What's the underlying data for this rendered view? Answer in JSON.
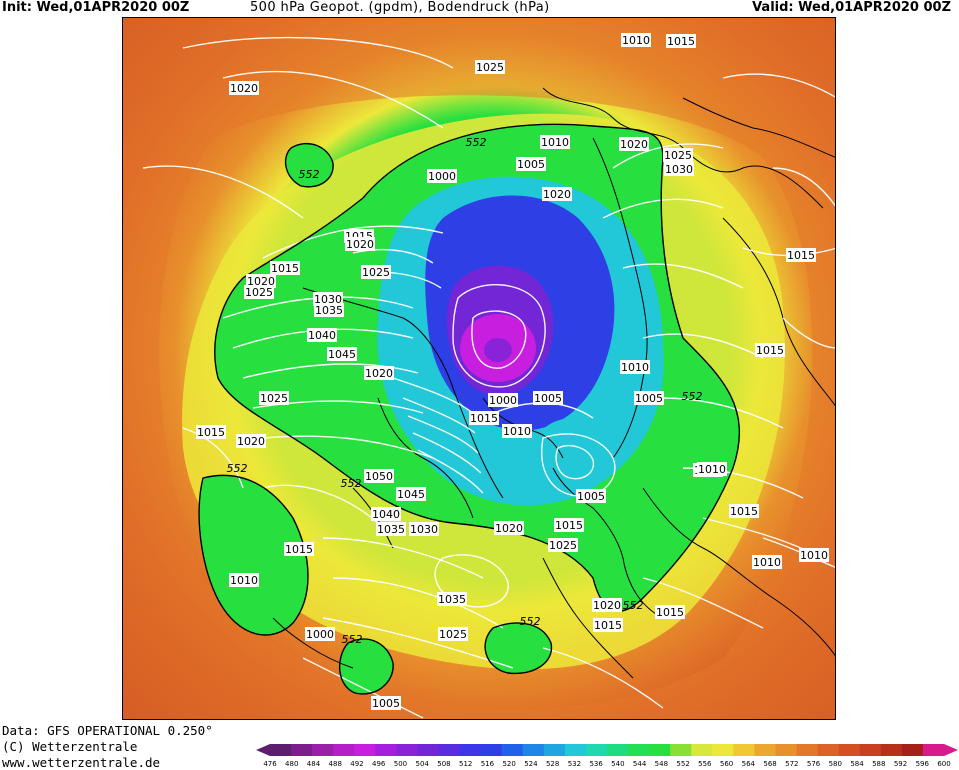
{
  "header": {
    "init": "Init: Wed,01APR2020 00Z",
    "title": "500 hPa Geopot. (gpdm), Bodendruck (hPa)",
    "valid": "Valid: Wed,01APR2020 00Z"
  },
  "footer": {
    "data_source": "Data: GFS OPERATIONAL 0.250°",
    "copyright": "(C) Wetterzentrale",
    "url": "www.wetterzentrale.de"
  },
  "colors": {
    "outer": "#c8401f",
    "warm": "#e4782a",
    "yellow": "#ece83a",
    "green": "#27e03f",
    "cyan": "#22c8d8",
    "blue": "#2f3fe6",
    "violet": "#7326d6",
    "magenta": "#c81ee0",
    "isobar": "#ffffff",
    "coast": "#000000"
  },
  "colorbar": {
    "ticks": [
      "476",
      "480",
      "484",
      "488",
      "492",
      "496",
      "500",
      "504",
      "508",
      "512",
      "516",
      "520",
      "524",
      "528",
      "532",
      "536",
      "540",
      "544",
      "548",
      "552",
      "556",
      "560",
      "564",
      "568",
      "572",
      "576",
      "580",
      "584",
      "588",
      "592",
      "596",
      "600"
    ],
    "colors": [
      "#5c1f6e",
      "#7a1f8c",
      "#9a20aa",
      "#b51fc6",
      "#c81ee0",
      "#a61fde",
      "#8a23d8",
      "#7326d6",
      "#5a2ce0",
      "#3f35e8",
      "#2f3fe6",
      "#2060ea",
      "#1e86e8",
      "#1fa6e0",
      "#22c8d8",
      "#1fd8b0",
      "#20dc80",
      "#23df55",
      "#27e03f",
      "#8adf35",
      "#d8e83a",
      "#ece83a",
      "#efc833",
      "#eca82e",
      "#e8902c",
      "#e4782a",
      "#dc6226",
      "#d45022",
      "#c8401f",
      "#b8301c",
      "#a42019",
      "#d81b8c"
    ]
  },
  "isobars": [
    {
      "v": "1010"
    },
    {
      "v": "1025"
    },
    {
      "v": "1020"
    },
    {
      "v": "1015"
    },
    {
      "v": "1025"
    },
    {
      "v": "1010"
    },
    {
      "v": "1020"
    },
    {
      "v": "1030"
    },
    {
      "v": "1005"
    },
    {
      "v": "1020"
    },
    {
      "v": "1000"
    },
    {
      "v": "1015"
    },
    {
      "v": "1020"
    },
    {
      "v": "1025"
    },
    {
      "v": "1015"
    },
    {
      "v": "1020"
    },
    {
      "v": "1025"
    },
    {
      "v": "1030"
    },
    {
      "v": "1035"
    },
    {
      "v": "1040"
    },
    {
      "v": "1045"
    },
    {
      "v": "1020"
    },
    {
      "v": "1025"
    },
    {
      "v": "1015"
    },
    {
      "v": "1010"
    },
    {
      "v": "1005"
    },
    {
      "v": "1000"
    },
    {
      "v": "1005"
    },
    {
      "v": "1015"
    },
    {
      "v": "1010"
    },
    {
      "v": "1010"
    },
    {
      "v": "1020"
    },
    {
      "v": "1050"
    },
    {
      "v": "1045"
    },
    {
      "v": "1040"
    },
    {
      "v": "1035"
    },
    {
      "v": "1030"
    },
    {
      "v": "1020"
    },
    {
      "v": "1015"
    },
    {
      "v": "1025"
    },
    {
      "v": "1005"
    },
    {
      "v": "1015"
    },
    {
      "v": "1010"
    },
    {
      "v": "1010"
    },
    {
      "v": "1015"
    },
    {
      "v": "1010"
    },
    {
      "v": "1035"
    },
    {
      "v": "1025"
    },
    {
      "v": "1020"
    },
    {
      "v": "1015"
    },
    {
      "v": "1015"
    },
    {
      "v": "1000"
    },
    {
      "v": "1005"
    },
    {
      "v": "1015"
    },
    {
      "v": "1015"
    },
    {
      "v": "1010"
    }
  ],
  "geopot_labels": [
    "552",
    "552",
    "552",
    "552",
    "552",
    "552",
    "552",
    "552"
  ]
}
